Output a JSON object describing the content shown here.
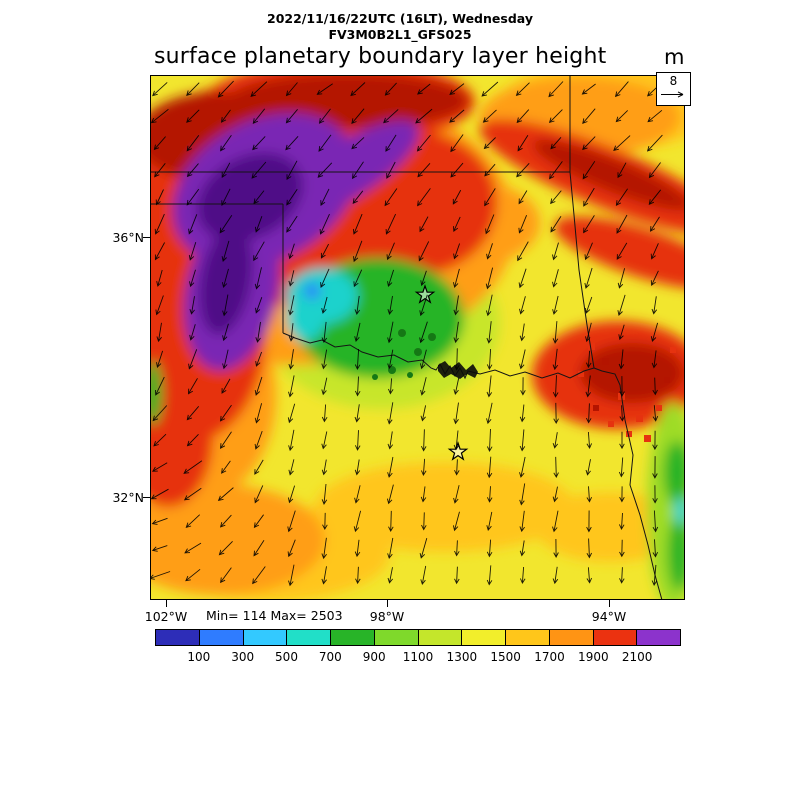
{
  "header": {
    "line1": "2022/11/16/22UTC (16LT), Wednesday",
    "line2": "FV3M0B2L1_GFS025"
  },
  "title": {
    "text": "surface planetary boundary layer height",
    "units": "m"
  },
  "wind_ref": {
    "value": "8"
  },
  "map": {
    "stats": "Min= 114 Max= 2503",
    "lat_ticks": [
      {
        "label": "36°N"
      },
      {
        "label": "32°N"
      }
    ],
    "lon_ticks": [
      {
        "label": "102°W"
      },
      {
        "label": "98°W"
      },
      {
        "label": "94°W"
      }
    ]
  },
  "colorbar": {
    "labels": [
      "100",
      "300",
      "500",
      "700",
      "900",
      "1100",
      "1300",
      "1500",
      "1700",
      "1900",
      "2100"
    ],
    "colors": [
      "#2d2db8",
      "#2f7cff",
      "#33c9ff",
      "#21dfc8",
      "#28b428",
      "#7fd92b",
      "#c4e62b",
      "#f2ee2b",
      "#ffc61a",
      "#ff9414",
      "#eb3210",
      "#8c33cc"
    ]
  },
  "chart_data": {
    "type": "heatmap",
    "title": "surface planetary boundary layer height",
    "units": "m",
    "valid_time": "2022/11/16/22UTC (16LT), Wednesday",
    "model": "FV3M0B2L1_GFS025",
    "min": 114,
    "max": 2503,
    "levels": [
      100,
      300,
      500,
      700,
      900,
      1100,
      1300,
      1500,
      1700,
      1900,
      2100
    ],
    "palette": [
      "#2d2db8",
      "#2f7cff",
      "#33c9ff",
      "#21dfc8",
      "#28b428",
      "#7fd92b",
      "#c4e62b",
      "#f2ee2b",
      "#ffc61a",
      "#ff9414",
      "#eb3210",
      "#8c33cc"
    ],
    "x_ticks": [
      "102°W",
      "98°W",
      "94°W"
    ],
    "y_ticks": [
      "36°N",
      "32°N"
    ],
    "wind_reference": 8,
    "legend_position": "bottom",
    "grid": false,
    "regions": [
      {
        "area": "northwest (Texas / Oklahoma panhandle)",
        "values": "above 2100"
      },
      {
        "area": "ring around northwest maximum",
        "values": "1700-2100"
      },
      {
        "area": "low blob over southwest Oklahoma / northwest Texas",
        "values": "300-900"
      },
      {
        "area": "central and southern plains",
        "values": "1100-1500"
      },
      {
        "area": "eastern Oklahoma patch",
        "values": "1700-2100"
      },
      {
        "area": "far eastern edge strip",
        "values": "500-1100"
      }
    ],
    "markers": [
      {
        "shape": "star",
        "location": "central Oklahoma"
      },
      {
        "shape": "star",
        "location": "north Texas"
      }
    ]
  }
}
